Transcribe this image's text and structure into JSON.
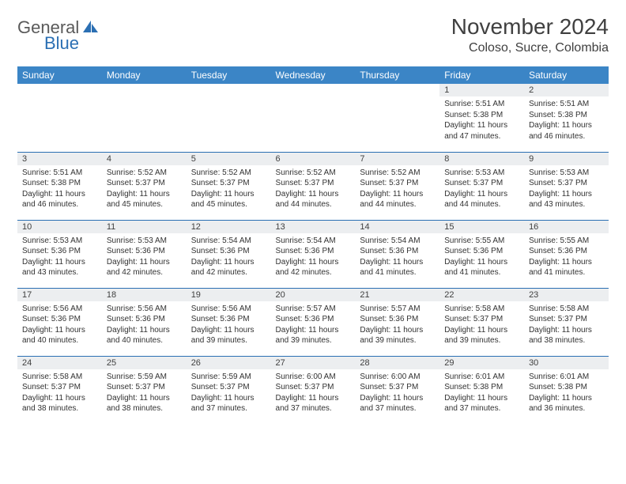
{
  "logo": {
    "general": "General",
    "blue": "Blue"
  },
  "title": "November 2024",
  "location": "Coloso, Sucre, Colombia",
  "colors": {
    "header_bg": "#3b85c6",
    "header_text": "#ffffff",
    "rule": "#2b6fb3",
    "daynum_bg": "#eceef0",
    "text": "#404040",
    "logo_gray": "#5a5a5a",
    "logo_blue": "#2b6fb3"
  },
  "weekdays": [
    "Sunday",
    "Monday",
    "Tuesday",
    "Wednesday",
    "Thursday",
    "Friday",
    "Saturday"
  ],
  "weeks": [
    [
      {
        "empty": true
      },
      {
        "empty": true
      },
      {
        "empty": true
      },
      {
        "empty": true
      },
      {
        "empty": true
      },
      {
        "day": "1",
        "sunrise": "Sunrise: 5:51 AM",
        "sunset": "Sunset: 5:38 PM",
        "daylight": "Daylight: 11 hours and 47 minutes."
      },
      {
        "day": "2",
        "sunrise": "Sunrise: 5:51 AM",
        "sunset": "Sunset: 5:38 PM",
        "daylight": "Daylight: 11 hours and 46 minutes."
      }
    ],
    [
      {
        "day": "3",
        "sunrise": "Sunrise: 5:51 AM",
        "sunset": "Sunset: 5:38 PM",
        "daylight": "Daylight: 11 hours and 46 minutes."
      },
      {
        "day": "4",
        "sunrise": "Sunrise: 5:52 AM",
        "sunset": "Sunset: 5:37 PM",
        "daylight": "Daylight: 11 hours and 45 minutes."
      },
      {
        "day": "5",
        "sunrise": "Sunrise: 5:52 AM",
        "sunset": "Sunset: 5:37 PM",
        "daylight": "Daylight: 11 hours and 45 minutes."
      },
      {
        "day": "6",
        "sunrise": "Sunrise: 5:52 AM",
        "sunset": "Sunset: 5:37 PM",
        "daylight": "Daylight: 11 hours and 44 minutes."
      },
      {
        "day": "7",
        "sunrise": "Sunrise: 5:52 AM",
        "sunset": "Sunset: 5:37 PM",
        "daylight": "Daylight: 11 hours and 44 minutes."
      },
      {
        "day": "8",
        "sunrise": "Sunrise: 5:53 AM",
        "sunset": "Sunset: 5:37 PM",
        "daylight": "Daylight: 11 hours and 44 minutes."
      },
      {
        "day": "9",
        "sunrise": "Sunrise: 5:53 AM",
        "sunset": "Sunset: 5:37 PM",
        "daylight": "Daylight: 11 hours and 43 minutes."
      }
    ],
    [
      {
        "day": "10",
        "sunrise": "Sunrise: 5:53 AM",
        "sunset": "Sunset: 5:36 PM",
        "daylight": "Daylight: 11 hours and 43 minutes."
      },
      {
        "day": "11",
        "sunrise": "Sunrise: 5:53 AM",
        "sunset": "Sunset: 5:36 PM",
        "daylight": "Daylight: 11 hours and 42 minutes."
      },
      {
        "day": "12",
        "sunrise": "Sunrise: 5:54 AM",
        "sunset": "Sunset: 5:36 PM",
        "daylight": "Daylight: 11 hours and 42 minutes."
      },
      {
        "day": "13",
        "sunrise": "Sunrise: 5:54 AM",
        "sunset": "Sunset: 5:36 PM",
        "daylight": "Daylight: 11 hours and 42 minutes."
      },
      {
        "day": "14",
        "sunrise": "Sunrise: 5:54 AM",
        "sunset": "Sunset: 5:36 PM",
        "daylight": "Daylight: 11 hours and 41 minutes."
      },
      {
        "day": "15",
        "sunrise": "Sunrise: 5:55 AM",
        "sunset": "Sunset: 5:36 PM",
        "daylight": "Daylight: 11 hours and 41 minutes."
      },
      {
        "day": "16",
        "sunrise": "Sunrise: 5:55 AM",
        "sunset": "Sunset: 5:36 PM",
        "daylight": "Daylight: 11 hours and 41 minutes."
      }
    ],
    [
      {
        "day": "17",
        "sunrise": "Sunrise: 5:56 AM",
        "sunset": "Sunset: 5:36 PM",
        "daylight": "Daylight: 11 hours and 40 minutes."
      },
      {
        "day": "18",
        "sunrise": "Sunrise: 5:56 AM",
        "sunset": "Sunset: 5:36 PM",
        "daylight": "Daylight: 11 hours and 40 minutes."
      },
      {
        "day": "19",
        "sunrise": "Sunrise: 5:56 AM",
        "sunset": "Sunset: 5:36 PM",
        "daylight": "Daylight: 11 hours and 39 minutes."
      },
      {
        "day": "20",
        "sunrise": "Sunrise: 5:57 AM",
        "sunset": "Sunset: 5:36 PM",
        "daylight": "Daylight: 11 hours and 39 minutes."
      },
      {
        "day": "21",
        "sunrise": "Sunrise: 5:57 AM",
        "sunset": "Sunset: 5:36 PM",
        "daylight": "Daylight: 11 hours and 39 minutes."
      },
      {
        "day": "22",
        "sunrise": "Sunrise: 5:58 AM",
        "sunset": "Sunset: 5:37 PM",
        "daylight": "Daylight: 11 hours and 39 minutes."
      },
      {
        "day": "23",
        "sunrise": "Sunrise: 5:58 AM",
        "sunset": "Sunset: 5:37 PM",
        "daylight": "Daylight: 11 hours and 38 minutes."
      }
    ],
    [
      {
        "day": "24",
        "sunrise": "Sunrise: 5:58 AM",
        "sunset": "Sunset: 5:37 PM",
        "daylight": "Daylight: 11 hours and 38 minutes."
      },
      {
        "day": "25",
        "sunrise": "Sunrise: 5:59 AM",
        "sunset": "Sunset: 5:37 PM",
        "daylight": "Daylight: 11 hours and 38 minutes."
      },
      {
        "day": "26",
        "sunrise": "Sunrise: 5:59 AM",
        "sunset": "Sunset: 5:37 PM",
        "daylight": "Daylight: 11 hours and 37 minutes."
      },
      {
        "day": "27",
        "sunrise": "Sunrise: 6:00 AM",
        "sunset": "Sunset: 5:37 PM",
        "daylight": "Daylight: 11 hours and 37 minutes."
      },
      {
        "day": "28",
        "sunrise": "Sunrise: 6:00 AM",
        "sunset": "Sunset: 5:37 PM",
        "daylight": "Daylight: 11 hours and 37 minutes."
      },
      {
        "day": "29",
        "sunrise": "Sunrise: 6:01 AM",
        "sunset": "Sunset: 5:38 PM",
        "daylight": "Daylight: 11 hours and 37 minutes."
      },
      {
        "day": "30",
        "sunrise": "Sunrise: 6:01 AM",
        "sunset": "Sunset: 5:38 PM",
        "daylight": "Daylight: 11 hours and 36 minutes."
      }
    ]
  ]
}
